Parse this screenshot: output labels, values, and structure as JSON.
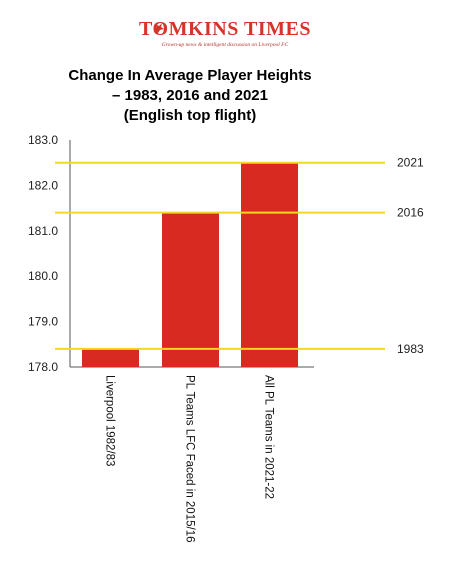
{
  "brand": {
    "name": "TOMKINS TIMES",
    "tagline": "Grown-up news & intelligent discussion on Liverpool FC",
    "accent_color": "#d6332b"
  },
  "chart_data": {
    "type": "bar",
    "title_lines": [
      "Change In Average Player Heights",
      "– 1983, 2016 and 2021",
      "(English top flight)"
    ],
    "categories": [
      "Liverpool 1982/83",
      "PL Teams LFC Faced in 2015/16",
      "All PL Teams in 2021-22"
    ],
    "values": [
      178.4,
      181.4,
      182.5
    ],
    "ylim": [
      178.0,
      183.0
    ],
    "yticks": [
      "178.0",
      "179.0",
      "180.0",
      "181.0",
      "182.0",
      "183.0"
    ],
    "reference_lines": [
      {
        "label": "1983",
        "value": 178.4
      },
      {
        "label": "2016",
        "value": 181.4
      },
      {
        "label": "2021",
        "value": 182.5
      }
    ],
    "bar_color": "#d92a22",
    "line_color": "#f2d91f",
    "grid": false,
    "xlabel": "",
    "ylabel": ""
  }
}
